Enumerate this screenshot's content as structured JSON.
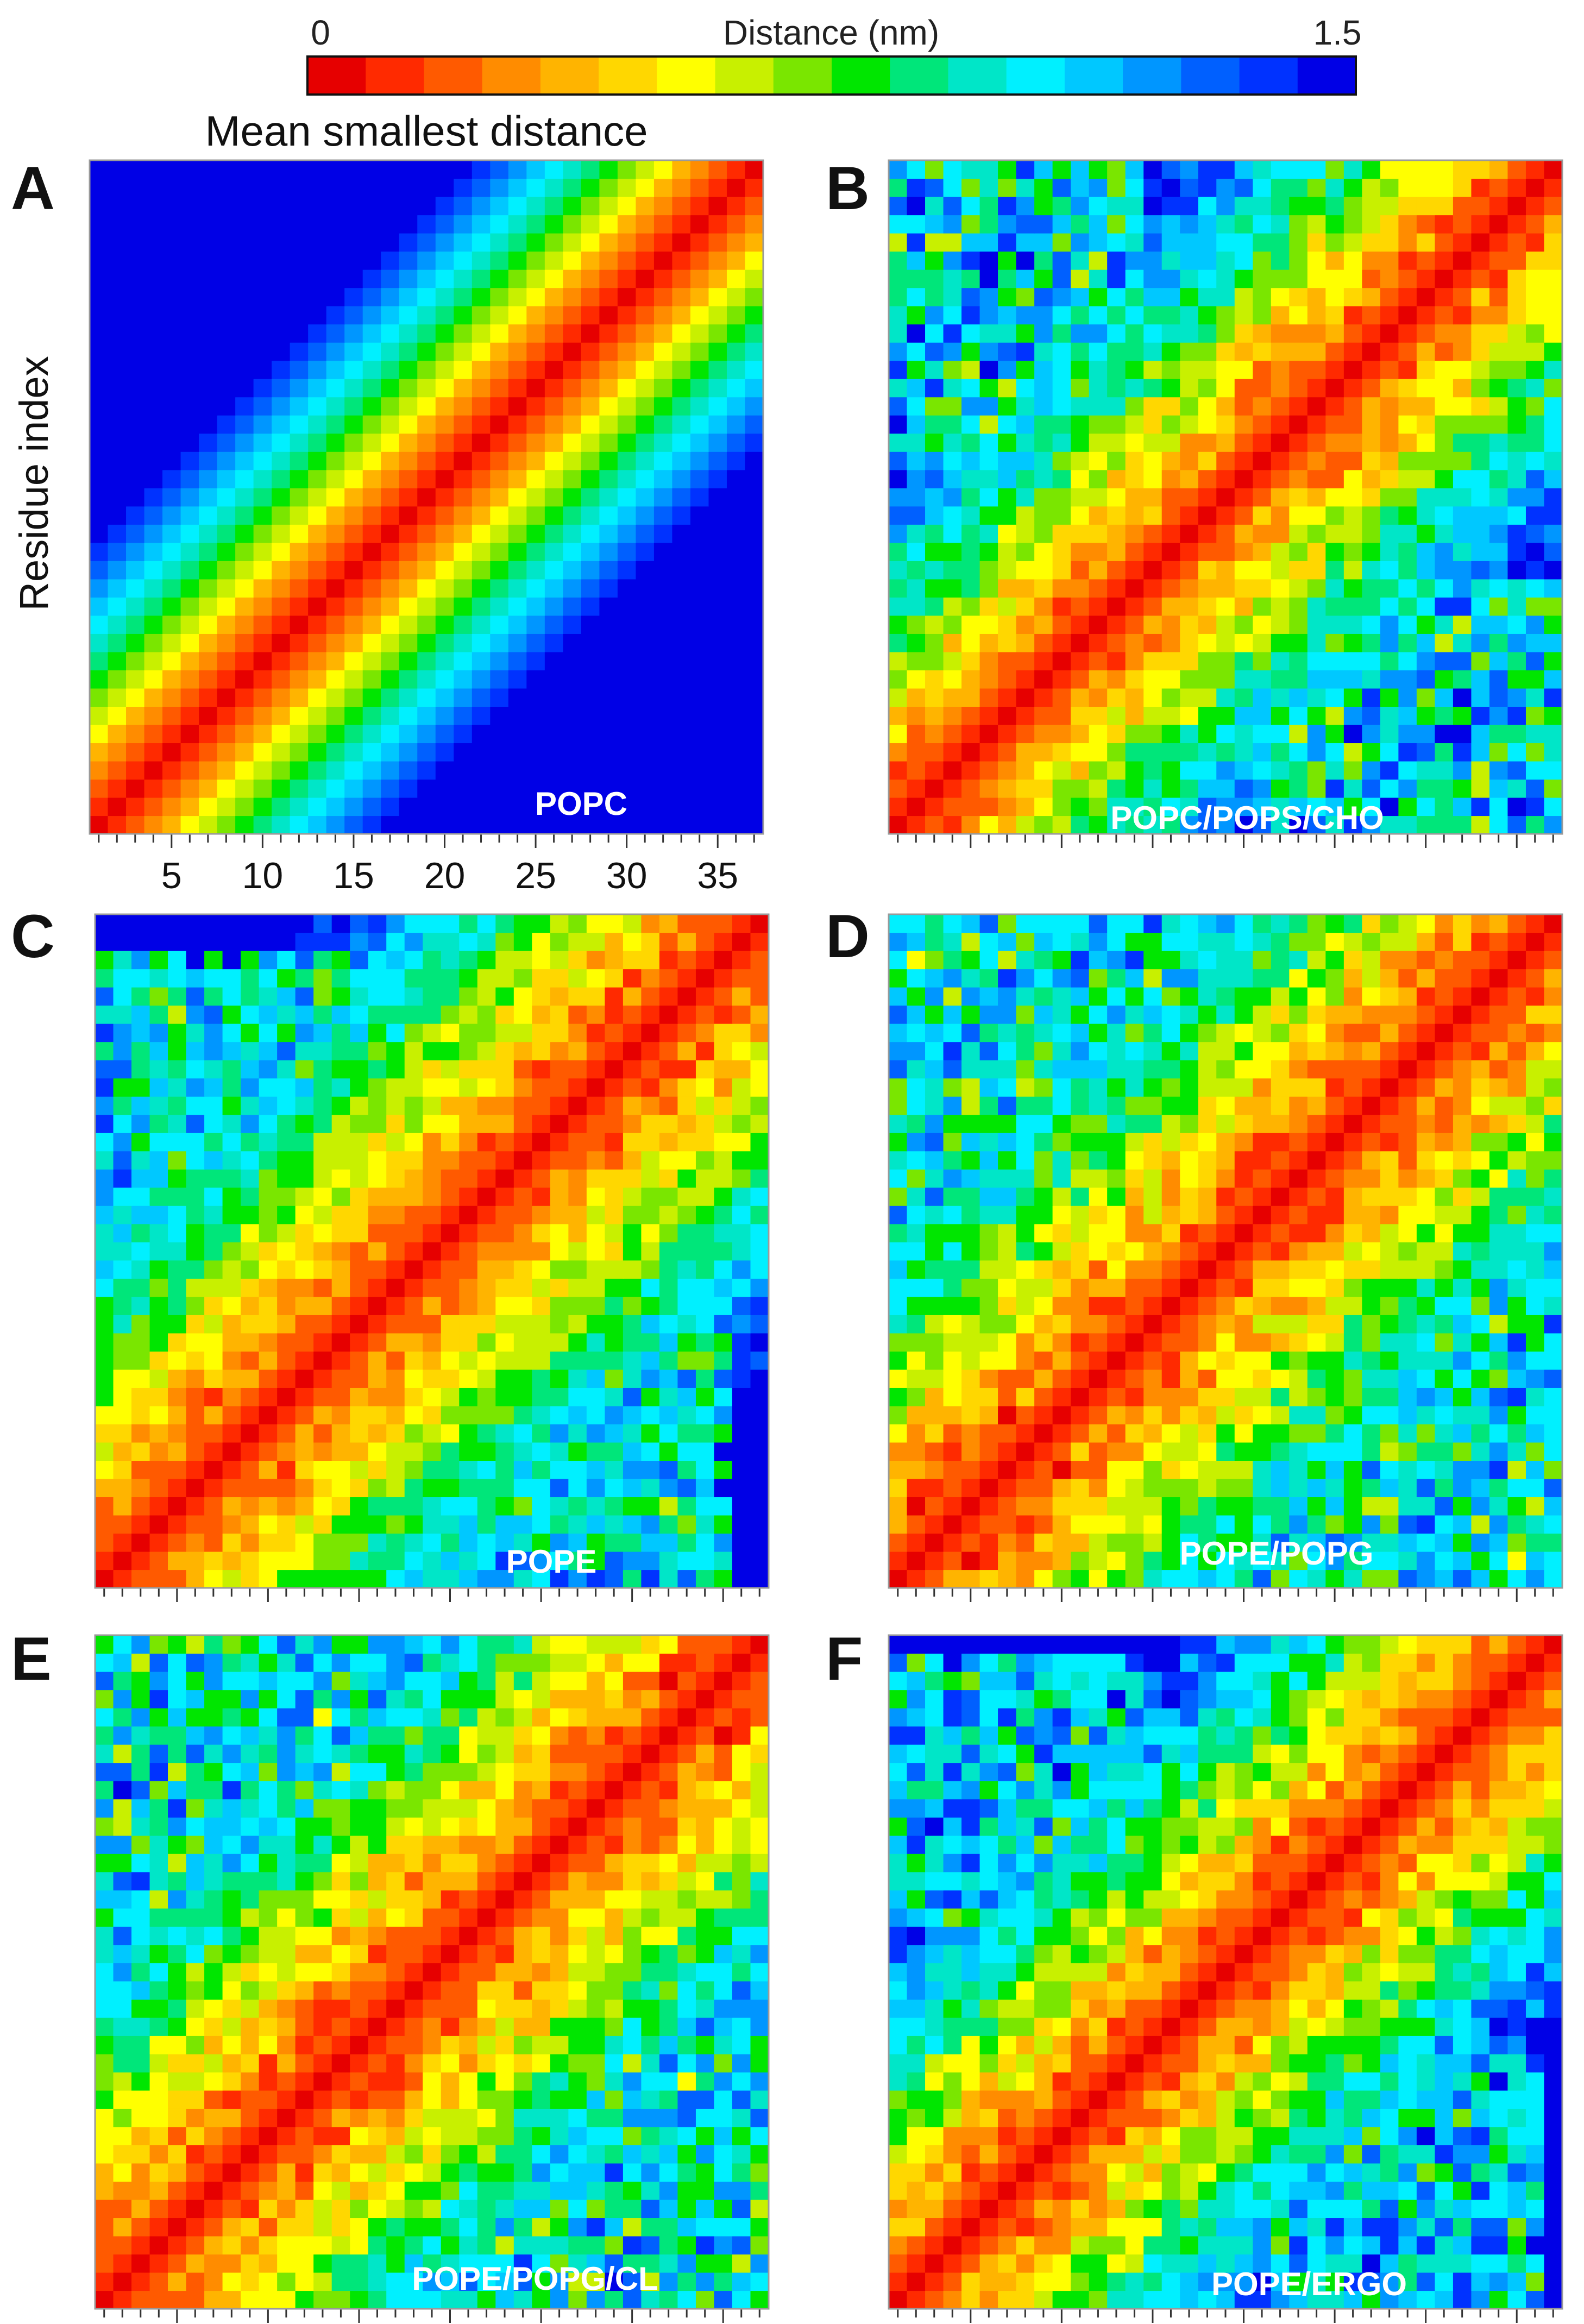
{
  "figure": {
    "title": "Mean smallest distance",
    "y_axis_label": "Residue index"
  },
  "colorbar": {
    "title": "Distance (nm)",
    "min_label": "0",
    "max_label": "1.5",
    "min": 0,
    "max": 1.5,
    "colors": [
      "#e60000",
      "#ff2a00",
      "#ff5a00",
      "#ff8c00",
      "#ffb400",
      "#ffd700",
      "#ffff00",
      "#c8f000",
      "#7ae600",
      "#00e600",
      "#00e67a",
      "#00e6c8",
      "#00f0ff",
      "#00c8ff",
      "#0096ff",
      "#0060ff",
      "#0032ff",
      "#0000e6"
    ]
  },
  "chart_data": [
    {
      "type": "heatmap",
      "panel": "A",
      "name": "POPC",
      "xlabel": "",
      "ylabel": "Residue index",
      "x_ticks": [
        5,
        10,
        15,
        20,
        25,
        30,
        35
      ],
      "n_residues": 37,
      "value_range": [
        0,
        1.5
      ],
      "contact_blocks": [],
      "spread": 1.0,
      "noise": 0.0
    },
    {
      "type": "heatmap",
      "panel": "B",
      "name": "POPC/POPS/CHO",
      "xlabel": "",
      "ylabel": "",
      "n_residues": 37,
      "value_range": [
        0,
        1.5
      ],
      "contact_blocks": [
        [
          1,
          14,
          22,
          37,
          0.75
        ]
      ],
      "spread": 1.3,
      "noise": 0.35
    },
    {
      "type": "heatmap",
      "panel": "C",
      "name": "POPE",
      "xlabel": "",
      "ylabel": "",
      "n_residues": 37,
      "value_range": [
        0,
        1.5
      ],
      "contact_blocks": [
        [
          1,
          14,
          20,
          35,
          0.75
        ]
      ],
      "spread": 1.5,
      "noise": 0.3
    },
    {
      "type": "heatmap",
      "panel": "D",
      "name": "POPE/POPG",
      "xlabel": "",
      "ylabel": "",
      "n_residues": 37,
      "value_range": [
        0,
        1.5
      ],
      "contact_blocks": [
        [
          1,
          16,
          20,
          37,
          0.7
        ]
      ],
      "spread": 1.5,
      "noise": 0.35
    },
    {
      "type": "heatmap",
      "panel": "E",
      "name": "POPE/POPG/CL",
      "xlabel": "",
      "ylabel": "",
      "n_residues": 37,
      "value_range": [
        0,
        1.5
      ],
      "contact_blocks": [
        [
          1,
          15,
          21,
          37,
          0.7
        ]
      ],
      "spread": 1.5,
      "noise": 0.35
    },
    {
      "type": "heatmap",
      "panel": "F",
      "name": "POPE/ERGO",
      "xlabel": "",
      "ylabel": "",
      "n_residues": 37,
      "value_range": [
        0,
        1.5
      ],
      "contact_blocks": [
        [
          1,
          14,
          22,
          36,
          0.8
        ]
      ],
      "spread": 1.3,
      "noise": 0.35
    }
  ]
}
